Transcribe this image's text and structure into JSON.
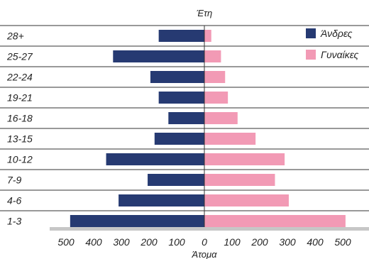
{
  "chart_data": {
    "type": "bar",
    "orientation": "horizontal",
    "layout": "population-pyramid",
    "title": "Έτη",
    "xlabel": "Άτομα",
    "ylabel": "",
    "categories": [
      "28+",
      "25-27",
      "22-24",
      "19-21",
      "16-18",
      "13-15",
      "10-12",
      "7-9",
      "4-6",
      "1-3"
    ],
    "series": [
      {
        "name": "Άνδρες",
        "side": "left",
        "color": "#263a72",
        "values": [
          165,
          330,
          195,
          165,
          130,
          180,
          355,
          205,
          310,
          485
        ]
      },
      {
        "name": "Γυναίκες",
        "side": "right",
        "color": "#f29ab5",
        "values": [
          25,
          60,
          75,
          85,
          120,
          185,
          290,
          255,
          305,
          510
        ]
      }
    ],
    "xlim": [
      -500,
      500
    ],
    "xticks": [
      -500,
      -400,
      -300,
      -200,
      -100,
      0,
      100,
      200,
      300,
      400,
      500
    ],
    "xtick_labels": [
      "500",
      "400",
      "300",
      "200",
      "100",
      "0",
      "100",
      "200",
      "300",
      "400",
      "500"
    ],
    "grid": false,
    "legend_position": "top-right"
  }
}
